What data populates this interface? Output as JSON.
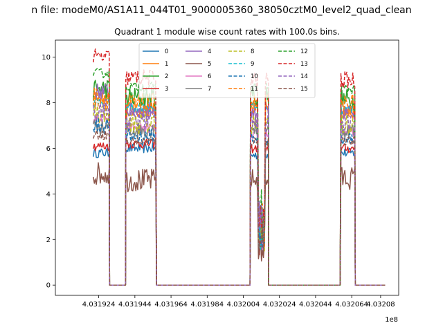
{
  "chart_data": {
    "type": "line",
    "suptitle": "n file: modeM0/AS1A11_044T01_9000005360_38050cztM0_level2_quad_clean",
    "title": "Quadrant 1 module wise count rates with 100.0s bins.",
    "xlabel": "",
    "ylabel": "",
    "x_offset_label": "1e8",
    "xlim": [
      4.0319,
      4.03209
    ],
    "ylim": [
      -0.45,
      10.75
    ],
    "xticks": [
      4.031924,
      4.031944,
      4.031964,
      4.031984,
      4.032004,
      4.032024,
      4.032044,
      4.032064,
      4.03208
    ],
    "xtick_labels": [
      "4.031924",
      "4.031944",
      "4.031964",
      "4.031984",
      "4.032004",
      "4.032024",
      "4.032044",
      "4.032064",
      "4.03208"
    ],
    "yticks": [
      0,
      2,
      4,
      6,
      8,
      10
    ],
    "ytick_labels": [
      "0",
      "2",
      "4",
      "6",
      "8",
      "10"
    ],
    "grid": false,
    "legend": {
      "placement": "top-center",
      "columns": 4
    },
    "segments_x": [
      [
        4.031921,
        4.03193
      ],
      [
        4.03193,
        4.031939
      ],
      [
        4.031939,
        4.031956
      ],
      [
        4.031956,
        4.032008
      ],
      [
        4.032008,
        4.032018
      ],
      [
        4.032018,
        4.032058
      ],
      [
        4.032058,
        4.032066
      ],
      [
        4.032066,
        4.032083
      ]
    ],
    "gap_levels": [
      0,
      0,
      0,
      0
    ],
    "series": [
      {
        "name": "0",
        "color": "#1f77b4",
        "dash": "solid",
        "levels": [
          5.8,
          6.0,
          5.7,
          5.8
        ]
      },
      {
        "name": "1",
        "color": "#ff7f0e",
        "dash": "solid",
        "levels": [
          8.3,
          7.7,
          7.8,
          7.6
        ]
      },
      {
        "name": "2",
        "color": "#2ca02c",
        "dash": "solid",
        "levels": [
          8.6,
          8.2,
          8.3,
          8.1
        ]
      },
      {
        "name": "3",
        "color": "#d62728",
        "dash": "solid",
        "levels": [
          6.1,
          6.2,
          6.0,
          6.0
        ]
      },
      {
        "name": "4",
        "color": "#9467bd",
        "dash": "solid",
        "levels": [
          8.5,
          7.7,
          7.6,
          7.6
        ]
      },
      {
        "name": "5",
        "color": "#8c564b",
        "dash": "solid",
        "levels": [
          4.9,
          4.6,
          4.6,
          4.7
        ]
      },
      {
        "name": "6",
        "color": "#e377c2",
        "dash": "solid",
        "levels": [
          7.3,
          6.9,
          6.6,
          6.7
        ]
      },
      {
        "name": "7",
        "color": "#7f7f7f",
        "dash": "solid",
        "levels": [
          6.9,
          6.8,
          6.9,
          6.8
        ]
      },
      {
        "name": "8",
        "color": "#bcbd22",
        "dash": "dashed",
        "levels": [
          7.6,
          7.1,
          7.1,
          7.0
        ]
      },
      {
        "name": "9",
        "color": "#17becf",
        "dash": "dashed",
        "levels": [
          8.0,
          7.8,
          7.8,
          7.7
        ]
      },
      {
        "name": "10",
        "color": "#1f77b4",
        "dash": "dashed",
        "levels": [
          7.0,
          6.5,
          6.5,
          6.4
        ]
      },
      {
        "name": "11",
        "color": "#ff7f0e",
        "dash": "dashed",
        "levels": [
          8.2,
          7.9,
          7.9,
          7.9
        ]
      },
      {
        "name": "12",
        "color": "#2ca02c",
        "dash": "dashed",
        "levels": [
          9.3,
          8.7,
          8.7,
          8.6
        ]
      },
      {
        "name": "13",
        "color": "#d62728",
        "dash": "dashed",
        "levels": [
          10.0,
          9.1,
          9.0,
          9.0
        ]
      },
      {
        "name": "14",
        "color": "#9467bd",
        "dash": "dashed",
        "levels": [
          7.7,
          7.3,
          7.4,
          7.3
        ]
      },
      {
        "name": "15",
        "color": "#8c564b",
        "dash": "dashed",
        "levels": [
          6.6,
          6.3,
          6.3,
          6.3
        ]
      }
    ]
  }
}
